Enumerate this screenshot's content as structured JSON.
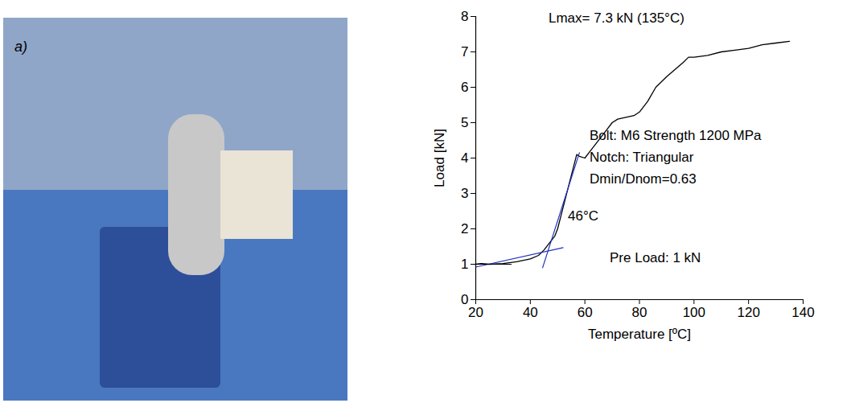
{
  "photo": {
    "label": "a)"
  },
  "chart_data": {
    "type": "line",
    "x_label": "Temperature [ºC]",
    "y_label": "Load [kN]",
    "xlim": [
      20,
      140
    ],
    "xticks": [
      20,
      40,
      60,
      80,
      100,
      120,
      140
    ],
    "ylim": [
      0,
      8
    ],
    "yticks": [
      0,
      1,
      2,
      3,
      4,
      5,
      6,
      7,
      8
    ],
    "grid": false,
    "annotations": [
      "Lmax= 7.3 kN (135°C)",
      "Bolt: M6 Strength 1200 MPa",
      "Notch: Triangular",
      "Dmin/Dnom=0.63",
      "46°C",
      "Pre Load: 1 kN"
    ],
    "series": [
      {
        "color": "#000000",
        "x": [
          20,
          22,
          25,
          30,
          35,
          40,
          43,
          45,
          47,
          49,
          50,
          52,
          54,
          56,
          57,
          58,
          60,
          62,
          64,
          66,
          68,
          70,
          72,
          75,
          78,
          80,
          83,
          86,
          90,
          93,
          96,
          98,
          100,
          105,
          110,
          115,
          120,
          125,
          130,
          135
        ],
        "values": [
          1.0,
          1.02,
          1.0,
          1.02,
          1.07,
          1.15,
          1.25,
          1.4,
          1.6,
          1.8,
          2.0,
          2.6,
          3.2,
          3.8,
          4.1,
          4.05,
          4.0,
          4.2,
          4.4,
          4.6,
          4.8,
          5.0,
          5.1,
          5.15,
          5.2,
          5.3,
          5.6,
          6.0,
          6.3,
          6.5,
          6.7,
          6.85,
          6.85,
          6.9,
          7.0,
          7.05,
          7.1,
          7.2,
          7.25,
          7.3
        ]
      },
      {
        "color": "#2030c0",
        "x": [
          20,
          52
        ],
        "values": [
          0.92,
          1.47
        ]
      },
      {
        "color": "#2030c0",
        "x": [
          44.5,
          58
        ],
        "values": [
          0.9,
          4.15
        ]
      },
      {
        "color": "#000000",
        "x": [
          20,
          33
        ],
        "values": [
          1.0,
          1.0
        ]
      }
    ]
  }
}
